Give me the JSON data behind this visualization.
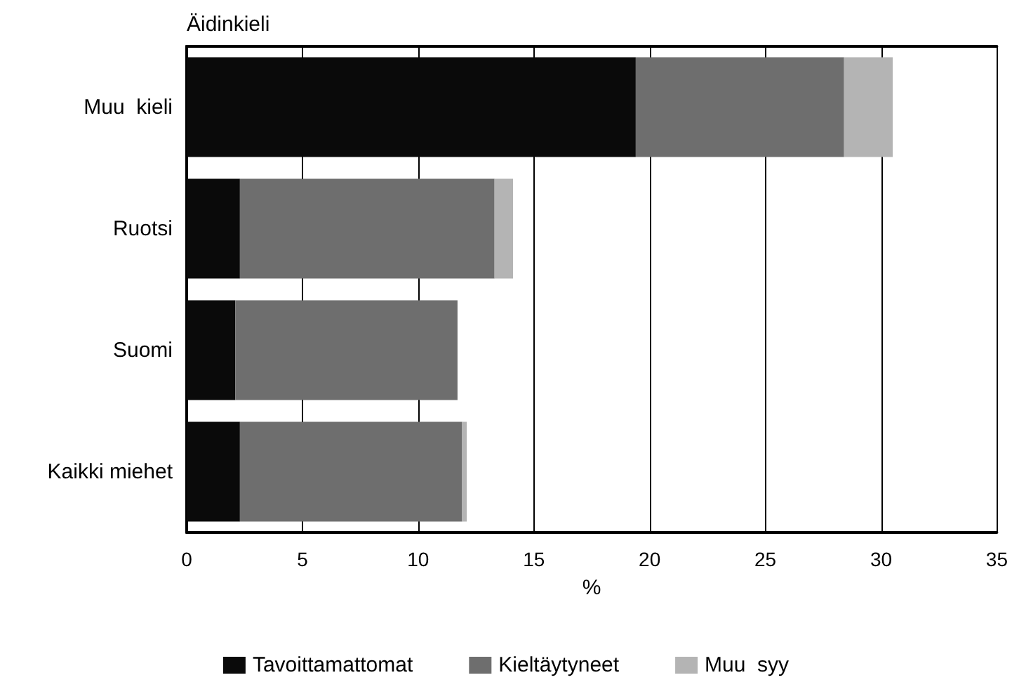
{
  "chart_data": {
    "type": "bar",
    "orientation": "horizontal",
    "stacked": true,
    "ylabel": "Äidinkieli",
    "xlabel": "%",
    "categories": [
      "Muu  kieli",
      "Ruotsi",
      "Suomi",
      "Kaikki miehet"
    ],
    "series": [
      {
        "name": "Tavoittamattomat",
        "color": "#0a0a0a",
        "values": [
          19.4,
          2.3,
          2.1,
          2.3
        ]
      },
      {
        "name": "Kieltäytyneet",
        "color": "#6e6e6e",
        "values": [
          9.0,
          11.0,
          9.6,
          9.6
        ]
      },
      {
        "name": "Muu  syy",
        "color": "#b4b4b4",
        "values": [
          2.1,
          0.8,
          0,
          0.2
        ]
      }
    ],
    "xlim": [
      0,
      35
    ],
    "xticks": [
      0,
      5,
      10,
      15,
      20,
      25,
      30,
      35
    ],
    "grid": "x",
    "legend": "bottom"
  }
}
